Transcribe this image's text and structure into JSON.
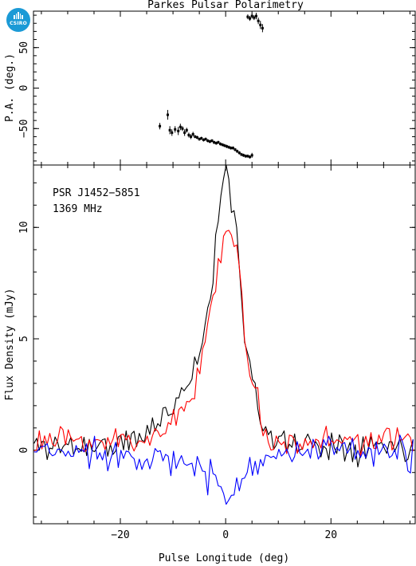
{
  "logo": {
    "text": "CSIRO"
  },
  "colors": {
    "total_intensity": "#000000",
    "linear_polarization": "#ff0000",
    "circular_polarization": "#0000ff",
    "axes": "#000000"
  },
  "chart_data": [
    {
      "type": "scatter",
      "title": "Parkes Pulsar Polarimetry",
      "xlabel": "",
      "ylabel": "P.A. (deg.)",
      "xlim": [
        -36.5,
        36
      ],
      "ylim": [
        -95,
        95
      ],
      "yticks": [
        -50,
        0,
        50
      ],
      "error_bars": true,
      "points": [
        {
          "x": -12.5,
          "y": -47,
          "err": 4
        },
        {
          "x": -11.0,
          "y": -33,
          "err": 6
        },
        {
          "x": -10.6,
          "y": -52,
          "err": 5
        },
        {
          "x": -10.2,
          "y": -55,
          "err": 4
        },
        {
          "x": -9.6,
          "y": -51,
          "err": 4
        },
        {
          "x": -9.0,
          "y": -53,
          "err": 5
        },
        {
          "x": -8.6,
          "y": -48,
          "err": 4
        },
        {
          "x": -8.2,
          "y": -50,
          "err": 3
        },
        {
          "x": -7.8,
          "y": -55,
          "err": 4
        },
        {
          "x": -7.4,
          "y": -52,
          "err": 3
        },
        {
          "x": -7.0,
          "y": -58,
          "err": 3
        },
        {
          "x": -6.6,
          "y": -60,
          "err": 3
        },
        {
          "x": -6.2,
          "y": -57,
          "err": 3
        },
        {
          "x": -5.8,
          "y": -60,
          "err": 2
        },
        {
          "x": -5.4,
          "y": -61,
          "err": 2
        },
        {
          "x": -5.0,
          "y": -63,
          "err": 2
        },
        {
          "x": -4.6,
          "y": -62,
          "err": 2
        },
        {
          "x": -4.2,
          "y": -64,
          "err": 2
        },
        {
          "x": -3.8,
          "y": -63,
          "err": 2
        },
        {
          "x": -3.4,
          "y": -65,
          "err": 2
        },
        {
          "x": -3.0,
          "y": -66,
          "err": 2
        },
        {
          "x": -2.6,
          "y": -65,
          "err": 2
        },
        {
          "x": -2.2,
          "y": -67,
          "err": 2
        },
        {
          "x": -1.8,
          "y": -68,
          "err": 2
        },
        {
          "x": -1.4,
          "y": -67,
          "err": 2
        },
        {
          "x": -1.0,
          "y": -69,
          "err": 2
        },
        {
          "x": -0.6,
          "y": -70,
          "err": 2
        },
        {
          "x": -0.2,
          "y": -71,
          "err": 2
        },
        {
          "x": 0.2,
          "y": -72,
          "err": 2
        },
        {
          "x": 0.6,
          "y": -73,
          "err": 2
        },
        {
          "x": 1.0,
          "y": -74,
          "err": 2
        },
        {
          "x": 1.4,
          "y": -74,
          "err": 2
        },
        {
          "x": 1.8,
          "y": -76,
          "err": 2
        },
        {
          "x": 2.2,
          "y": -78,
          "err": 2
        },
        {
          "x": 2.6,
          "y": -80,
          "err": 2
        },
        {
          "x": 3.0,
          "y": -82,
          "err": 2
        },
        {
          "x": 3.4,
          "y": -83,
          "err": 2
        },
        {
          "x": 3.8,
          "y": -84,
          "err": 2
        },
        {
          "x": 4.2,
          "y": -84,
          "err": 2
        },
        {
          "x": 4.6,
          "y": -85,
          "err": 2
        },
        {
          "x": 5.0,
          "y": -83,
          "err": 3
        },
        {
          "x": 4.2,
          "y": 88,
          "err": 3
        },
        {
          "x": 4.6,
          "y": 86,
          "err": 3
        },
        {
          "x": 5.0,
          "y": 89,
          "err": 3
        },
        {
          "x": 5.4,
          "y": 87,
          "err": 3
        },
        {
          "x": 5.8,
          "y": 89,
          "err": 4
        },
        {
          "x": 6.2,
          "y": 83,
          "err": 4
        },
        {
          "x": 6.6,
          "y": 78,
          "err": 5
        },
        {
          "x": 7.0,
          "y": 74,
          "err": 5
        }
      ]
    },
    {
      "type": "line",
      "title": "",
      "annotations": [
        "PSR J1452−5851",
        "1369 MHz"
      ],
      "xlabel": "Pulse Longitude (deg)",
      "ylabel": "Flux Density (mJy)",
      "xlim": [
        -36.5,
        36
      ],
      "ylim": [
        -3.3,
        12.8
      ],
      "xticks": [
        -20,
        0,
        20
      ],
      "yticks": [
        0,
        5,
        10
      ],
      "series": [
        {
          "color": "#000000",
          "shape": [
            [
              -36,
              0.2
            ],
            [
              -20,
              0.2
            ],
            [
              -16,
              0.6
            ],
            [
              -12,
              1.4
            ],
            [
              -10,
              2.1
            ],
            [
              -8,
              2.8
            ],
            [
              -6,
              3.6
            ],
            [
              -5,
              4.6
            ],
            [
              -4,
              5.2
            ],
            [
              -3,
              6.8
            ],
            [
              -2,
              8.8
            ],
            [
              -1,
              11.3
            ],
            [
              0,
              12.2
            ],
            [
              0.5,
              12.5
            ],
            [
              1,
              11.6
            ],
            [
              2,
              10.1
            ],
            [
              3,
              7.3
            ],
            [
              4,
              4.2
            ],
            [
              5,
              3.4
            ],
            [
              6,
              2.5
            ],
            [
              7,
              1.2
            ],
            [
              8,
              0.6
            ],
            [
              10,
              0.3
            ],
            [
              36,
              0.2
            ]
          ],
          "noise": 0.35,
          "seed": 11
        },
        {
          "color": "#ff0000",
          "shape": [
            [
              -36,
              0.4
            ],
            [
              -20,
              0.4
            ],
            [
              -16,
              0.5
            ],
            [
              -12,
              0.9
            ],
            [
              -10,
              1.2
            ],
            [
              -8,
              1.9
            ],
            [
              -6,
              2.6
            ],
            [
              -5,
              3.8
            ],
            [
              -4,
              4.9
            ],
            [
              -3,
              6.2
            ],
            [
              -2,
              7.3
            ],
            [
              -1,
              8.9
            ],
            [
              0,
              9.6
            ],
            [
              1,
              10.2
            ],
            [
              2,
              9.2
            ],
            [
              3,
              6.9
            ],
            [
              4,
              4.0
            ],
            [
              5,
              3.3
            ],
            [
              6,
              2.3
            ],
            [
              7,
              1.1
            ],
            [
              8,
              0.5
            ],
            [
              10,
              0.4
            ],
            [
              36,
              0.4
            ]
          ],
          "noise": 0.3,
          "seed": 23
        },
        {
          "color": "#0000ff",
          "shape": [
            [
              -36,
              -0.1
            ],
            [
              -20,
              -0.1
            ],
            [
              -16,
              -0.2
            ],
            [
              -12,
              -0.4
            ],
            [
              -10,
              -0.6
            ],
            [
              -8,
              -0.7
            ],
            [
              -6,
              -0.8
            ],
            [
              -4,
              -1.0
            ],
            [
              -2,
              -1.3
            ],
            [
              -1,
              -1.8
            ],
            [
              0,
              -2.5
            ],
            [
              1,
              -1.9
            ],
            [
              2,
              -1.4
            ],
            [
              3,
              -1.2
            ],
            [
              4,
              -0.9
            ],
            [
              5,
              -0.6
            ],
            [
              7,
              -0.3
            ],
            [
              10,
              -0.1
            ],
            [
              36,
              -0.1
            ]
          ],
          "noise": 0.35,
          "seed": 37
        }
      ]
    }
  ]
}
